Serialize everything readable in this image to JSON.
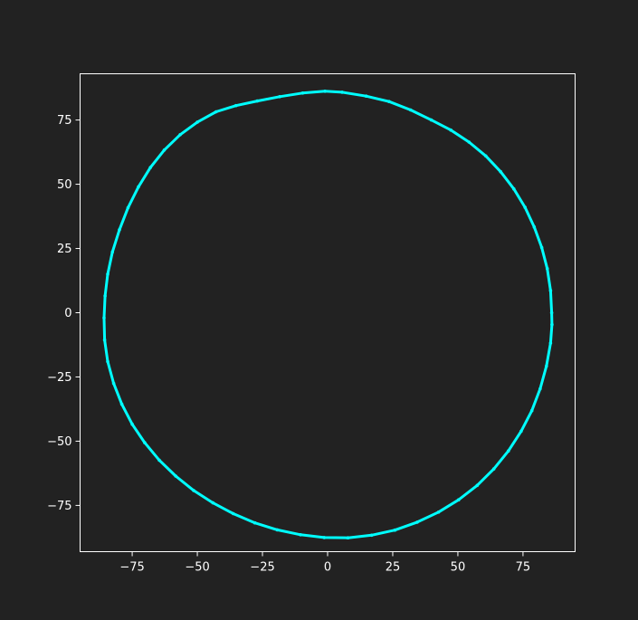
{
  "chart_data": {
    "type": "scatter",
    "title": "",
    "xlabel": "",
    "ylabel": "",
    "xlim": [
      -95,
      95
    ],
    "ylim": [
      -93,
      93
    ],
    "xticks": [
      -75,
      -50,
      -25,
      0,
      25,
      50,
      75
    ],
    "yticks": [
      75,
      50,
      25,
      0,
      -25,
      -50,
      -75
    ],
    "xtick_labels": [
      "−75",
      "−50",
      "−25",
      "0",
      "25",
      "50",
      "75"
    ],
    "ytick_labels": [
      "75",
      "50",
      "25",
      "0",
      "−25",
      "−50",
      "−75"
    ],
    "grid": false,
    "legend": "none",
    "series": [
      {
        "color": "#00ffff",
        "points": [
          [
            86.0,
            0.0
          ],
          [
            85.6,
            8.6
          ],
          [
            84.3,
            17.2
          ],
          [
            82.2,
            25.4
          ],
          [
            79.3,
            33.4
          ],
          [
            75.8,
            41.0
          ],
          [
            71.5,
            48.2
          ],
          [
            66.4,
            54.9
          ],
          [
            60.7,
            61.0
          ],
          [
            54.3,
            66.4
          ],
          [
            47.3,
            71.1
          ],
          [
            39.8,
            75.0
          ],
          [
            31.9,
            78.9
          ],
          [
            23.6,
            82.2
          ],
          [
            14.8,
            84.3
          ],
          [
            5.6,
            85.8
          ],
          [
            -1.0,
            86.2
          ],
          [
            -9.6,
            85.5
          ],
          [
            -18.4,
            84.1
          ],
          [
            -27.0,
            82.4
          ],
          [
            -35.2,
            80.6
          ],
          [
            -42.8,
            78.2
          ],
          [
            -50.0,
            74.2
          ],
          [
            -56.6,
            69.3
          ],
          [
            -62.7,
            63.3
          ],
          [
            -68.0,
            56.5
          ],
          [
            -72.6,
            49.0
          ],
          [
            -76.6,
            40.9
          ],
          [
            -79.9,
            32.3
          ],
          [
            -82.6,
            23.6
          ],
          [
            -84.4,
            15.0
          ],
          [
            -85.4,
            6.5
          ],
          [
            -85.8,
            -2.0
          ],
          [
            -85.6,
            -10.6
          ],
          [
            -84.4,
            -19.0
          ],
          [
            -82.1,
            -27.5
          ],
          [
            -79.0,
            -35.6
          ],
          [
            -75.0,
            -43.4
          ],
          [
            -70.2,
            -50.6
          ],
          [
            -64.6,
            -57.4
          ],
          [
            -58.3,
            -63.6
          ],
          [
            -51.4,
            -69.2
          ],
          [
            -44.0,
            -74.0
          ],
          [
            -36.2,
            -78.2
          ],
          [
            -27.9,
            -81.8
          ],
          [
            -19.3,
            -84.5
          ],
          [
            -10.4,
            -86.4
          ],
          [
            -1.3,
            -87.5
          ],
          [
            7.8,
            -87.6
          ],
          [
            16.9,
            -86.6
          ],
          [
            25.8,
            -84.6
          ],
          [
            34.4,
            -81.5
          ],
          [
            42.6,
            -77.6
          ],
          [
            50.3,
            -72.8
          ],
          [
            57.4,
            -67.2
          ],
          [
            63.8,
            -60.8
          ],
          [
            69.4,
            -53.8
          ],
          [
            74.3,
            -46.1
          ],
          [
            78.4,
            -38.1
          ],
          [
            81.6,
            -29.6
          ],
          [
            84.0,
            -20.8
          ],
          [
            85.6,
            -11.8
          ],
          [
            86.1,
            -4.6
          ]
        ]
      }
    ]
  }
}
